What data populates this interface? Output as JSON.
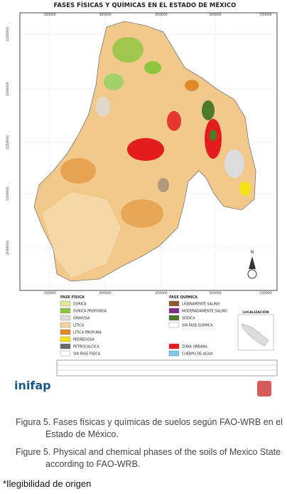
{
  "title": "FASES FÍSICAS Y QUÍMICAS EN EL ESTADO DE MÉXICO",
  "map": {
    "x_labels": [
      "350000",
      "400000",
      "450000",
      "500000",
      "550000"
    ],
    "y_labels": [
      "2250000",
      "2200000",
      "2150000",
      "2100000",
      "2050000"
    ],
    "north": "N"
  },
  "legend": {
    "physical": {
      "title": "FASE FÍSICA",
      "items": [
        {
          "label": "DÚRICA",
          "color": "#e4e79a"
        },
        {
          "label": "DÚRICA PROFUNDA",
          "color": "#8cc63f"
        },
        {
          "label": "GRAVOSA",
          "color": "#dcdcdc"
        },
        {
          "label": "LÍTICA",
          "color": "#f6d39c"
        },
        {
          "label": "LÍTICA PROFUNA",
          "color": "#e08a2b"
        },
        {
          "label": "PEDREGOSA",
          "color": "#f5e11a"
        },
        {
          "label": "PETROCALCICA",
          "color": "#6b6b6b"
        },
        {
          "label": "SIN FASE FÍSICA",
          "color": "#ffffff"
        }
      ]
    },
    "chemical": {
      "title": "FASE QUÍMICA",
      "items": [
        {
          "label": "LIGERAMENTE SALINO",
          "color": "#8b5a2b"
        },
        {
          "label": "MODERADAMENTE SALINO",
          "color": "#7b2d8e"
        },
        {
          "label": "SÓDICA",
          "color": "#4a7a2a"
        },
        {
          "label": "SIN FASE QUÍMICA",
          "color": "#ffffff"
        },
        {
          "label": "ZONA URBANA",
          "color": "#e31d1d"
        },
        {
          "label": "CUERPO DE AGUA",
          "color": "#7fc8e8"
        }
      ]
    },
    "location": "LOCALIZACIÓN"
  },
  "logo": "inifap",
  "caption": {
    "es": "Figura 5. Fases físicas y químicas de suelos según FAO-WRB en el Estado de México.",
    "en": "Figure 5. Physical and chemical phases of the soils of Mexico State according to FAO-WRB."
  },
  "note": "*Ilegibilidad de origen"
}
